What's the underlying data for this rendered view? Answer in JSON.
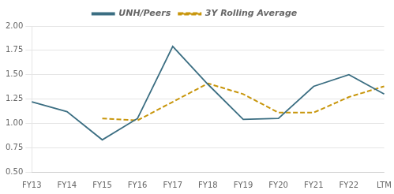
{
  "chart_data": {
    "type": "line",
    "categories": [
      "FY13",
      "FY14",
      "FY15",
      "FY16",
      "FY17",
      "FY18",
      "FY19",
      "FY20",
      "FY21",
      "FY22",
      "LTM"
    ],
    "series": [
      {
        "name": "UNH/Peers",
        "color": "#3B6E82",
        "line_style": "solid",
        "marker": "none",
        "values": [
          1.22,
          1.12,
          0.83,
          1.05,
          1.79,
          1.4,
          1.04,
          1.05,
          1.38,
          1.5,
          1.3
        ]
      },
      {
        "name": "3Y Rolling Average",
        "color": "#C8960C",
        "line_style": "dashed",
        "marker": "none",
        "values": [
          null,
          null,
          1.05,
          1.03,
          null,
          1.41,
          1.3,
          1.11,
          1.11,
          1.27,
          1.38
        ]
      }
    ],
    "ylim": [
      0.5,
      2.0
    ],
    "yticks": [
      {
        "value": 0.5,
        "label": "0.50"
      },
      0.75,
      {
        "value": 1.0,
        "label": "1.00"
      },
      1.25,
      {
        "value": 1.5,
        "label": "1.50"
      },
      1.75,
      {
        "value": 2.0,
        "label": "2.00"
      }
    ],
    "grid": true,
    "legend": "top"
  }
}
